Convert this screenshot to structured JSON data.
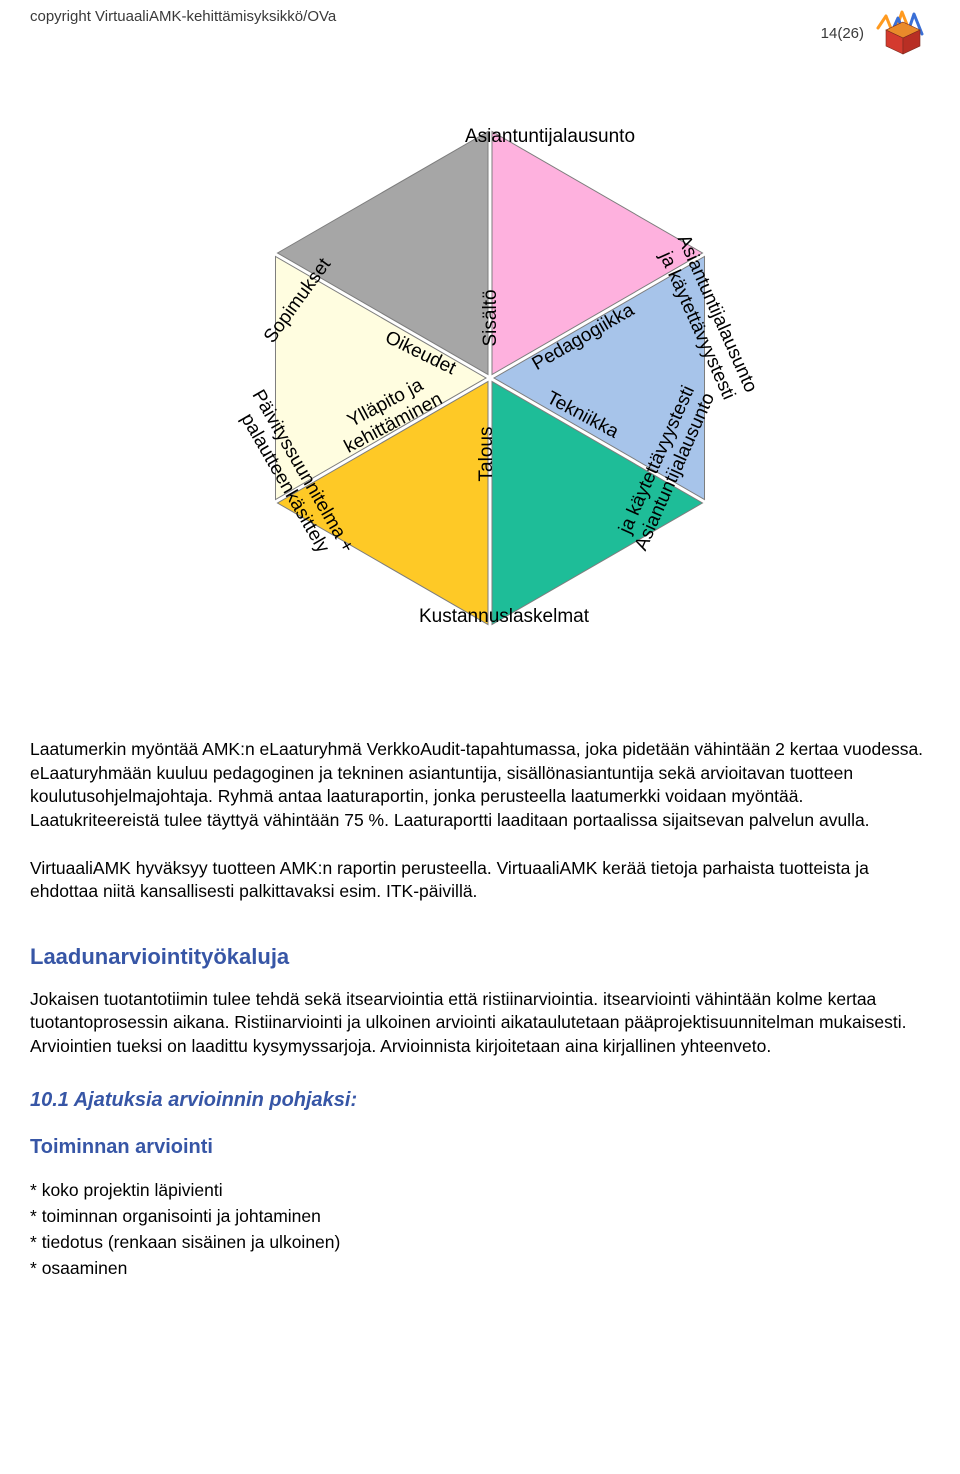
{
  "header": {
    "copyright": "copyright VirtuaaliAMK-kehittämisyksikkö/OVa",
    "page_num": "14(26)"
  },
  "hex": {
    "outer_labels": {
      "top": "Asiantuntijalausunto",
      "top_right_a": "Asiantuntijalausunto",
      "top_right_b": "ja käytettävyystesti",
      "bottom_right_a": "Asiantuntijalausunto",
      "bottom_right_b": "ja käytettävyystesti",
      "bottom": "Kustannuslaskelmat",
      "bottom_left_a": "Päivityssuunnitelma +",
      "bottom_left_b": "palautteenkäsittely",
      "top_left": "Sopimukset"
    },
    "inner_labels": {
      "top_left": "Oikeudet",
      "top_mid": "Sisältö",
      "top_right": "Pedagogiikka",
      "bot_right": "Tekniikka",
      "bot_mid": "Talous",
      "bot_left_a": "Ylläpito ja",
      "bot_left_b": "kehittäminen"
    },
    "colors": {
      "gray": "#a6a6a6",
      "pink": "#feb1de",
      "blue": "#a7c4ea",
      "teal": "#1ebd98",
      "yellow": "#fec926",
      "lightyellow": "#fffde0",
      "stroke": "#7d7d7d"
    },
    "font": {
      "outer_size": 19,
      "inner_size": 19
    }
  },
  "para1": "Laatumerkin myöntää AMK:n eLaaturyhmä VerkkoAudit-tapahtumassa, joka pidetään vähintään 2 kertaa vuodessa. eLaaturyhmään kuuluu pedagoginen ja tekninen asiantuntija, sisällönasiantuntija sekä arvioitavan tuotteen koulutusohjelmajohtaja. Ryhmä antaa laaturaportin, jonka perusteella laatumerkki voidaan myöntää. Laatukriteereistä tulee täyttyä vähintään 75 %. Laaturaportti laaditaan portaalissa sijaitsevan palvelun avulla.",
  "para2": "VirtuaaliAMK hyväksyy tuotteen AMK:n raportin perusteella. VirtuaaliAMK kerää tietoja parhaista tuotteista ja ehdottaa niitä kansallisesti palkittavaksi esim. ITK-päivillä.",
  "section_title": "Laadunarviointityökaluja",
  "para3": "Jokaisen tuotantotiimin tulee tehdä sekä itsearviointia että ristiinarviointia. itsearviointi vähintään kolme kertaa tuotantoprosessin aikana. Ristiinarviointi ja ulkoinen arviointi aikataulutetaan pääprojektisuunnitelman mukaisesti. Arviointien tueksi on laadittu kysymyssarjoja. Arvioinnista kirjoitetaan aina kirjallinen yhteenveto.",
  "subsection_title": "10.1 Ajatuksia arvioinnin pohjaksi:",
  "blue_title": "Toiminnan arviointi",
  "bullets": [
    "koko projektin läpivienti",
    "toiminnan organisointi ja johtaminen",
    "tiedotus (renkaan sisäinen ja ulkoinen)",
    "osaaminen"
  ],
  "logo_colors": {
    "red": "#d43a2e",
    "orange": "#e98a2a",
    "zig1": "#ff9a1f",
    "zig2": "#3a6fd6"
  }
}
